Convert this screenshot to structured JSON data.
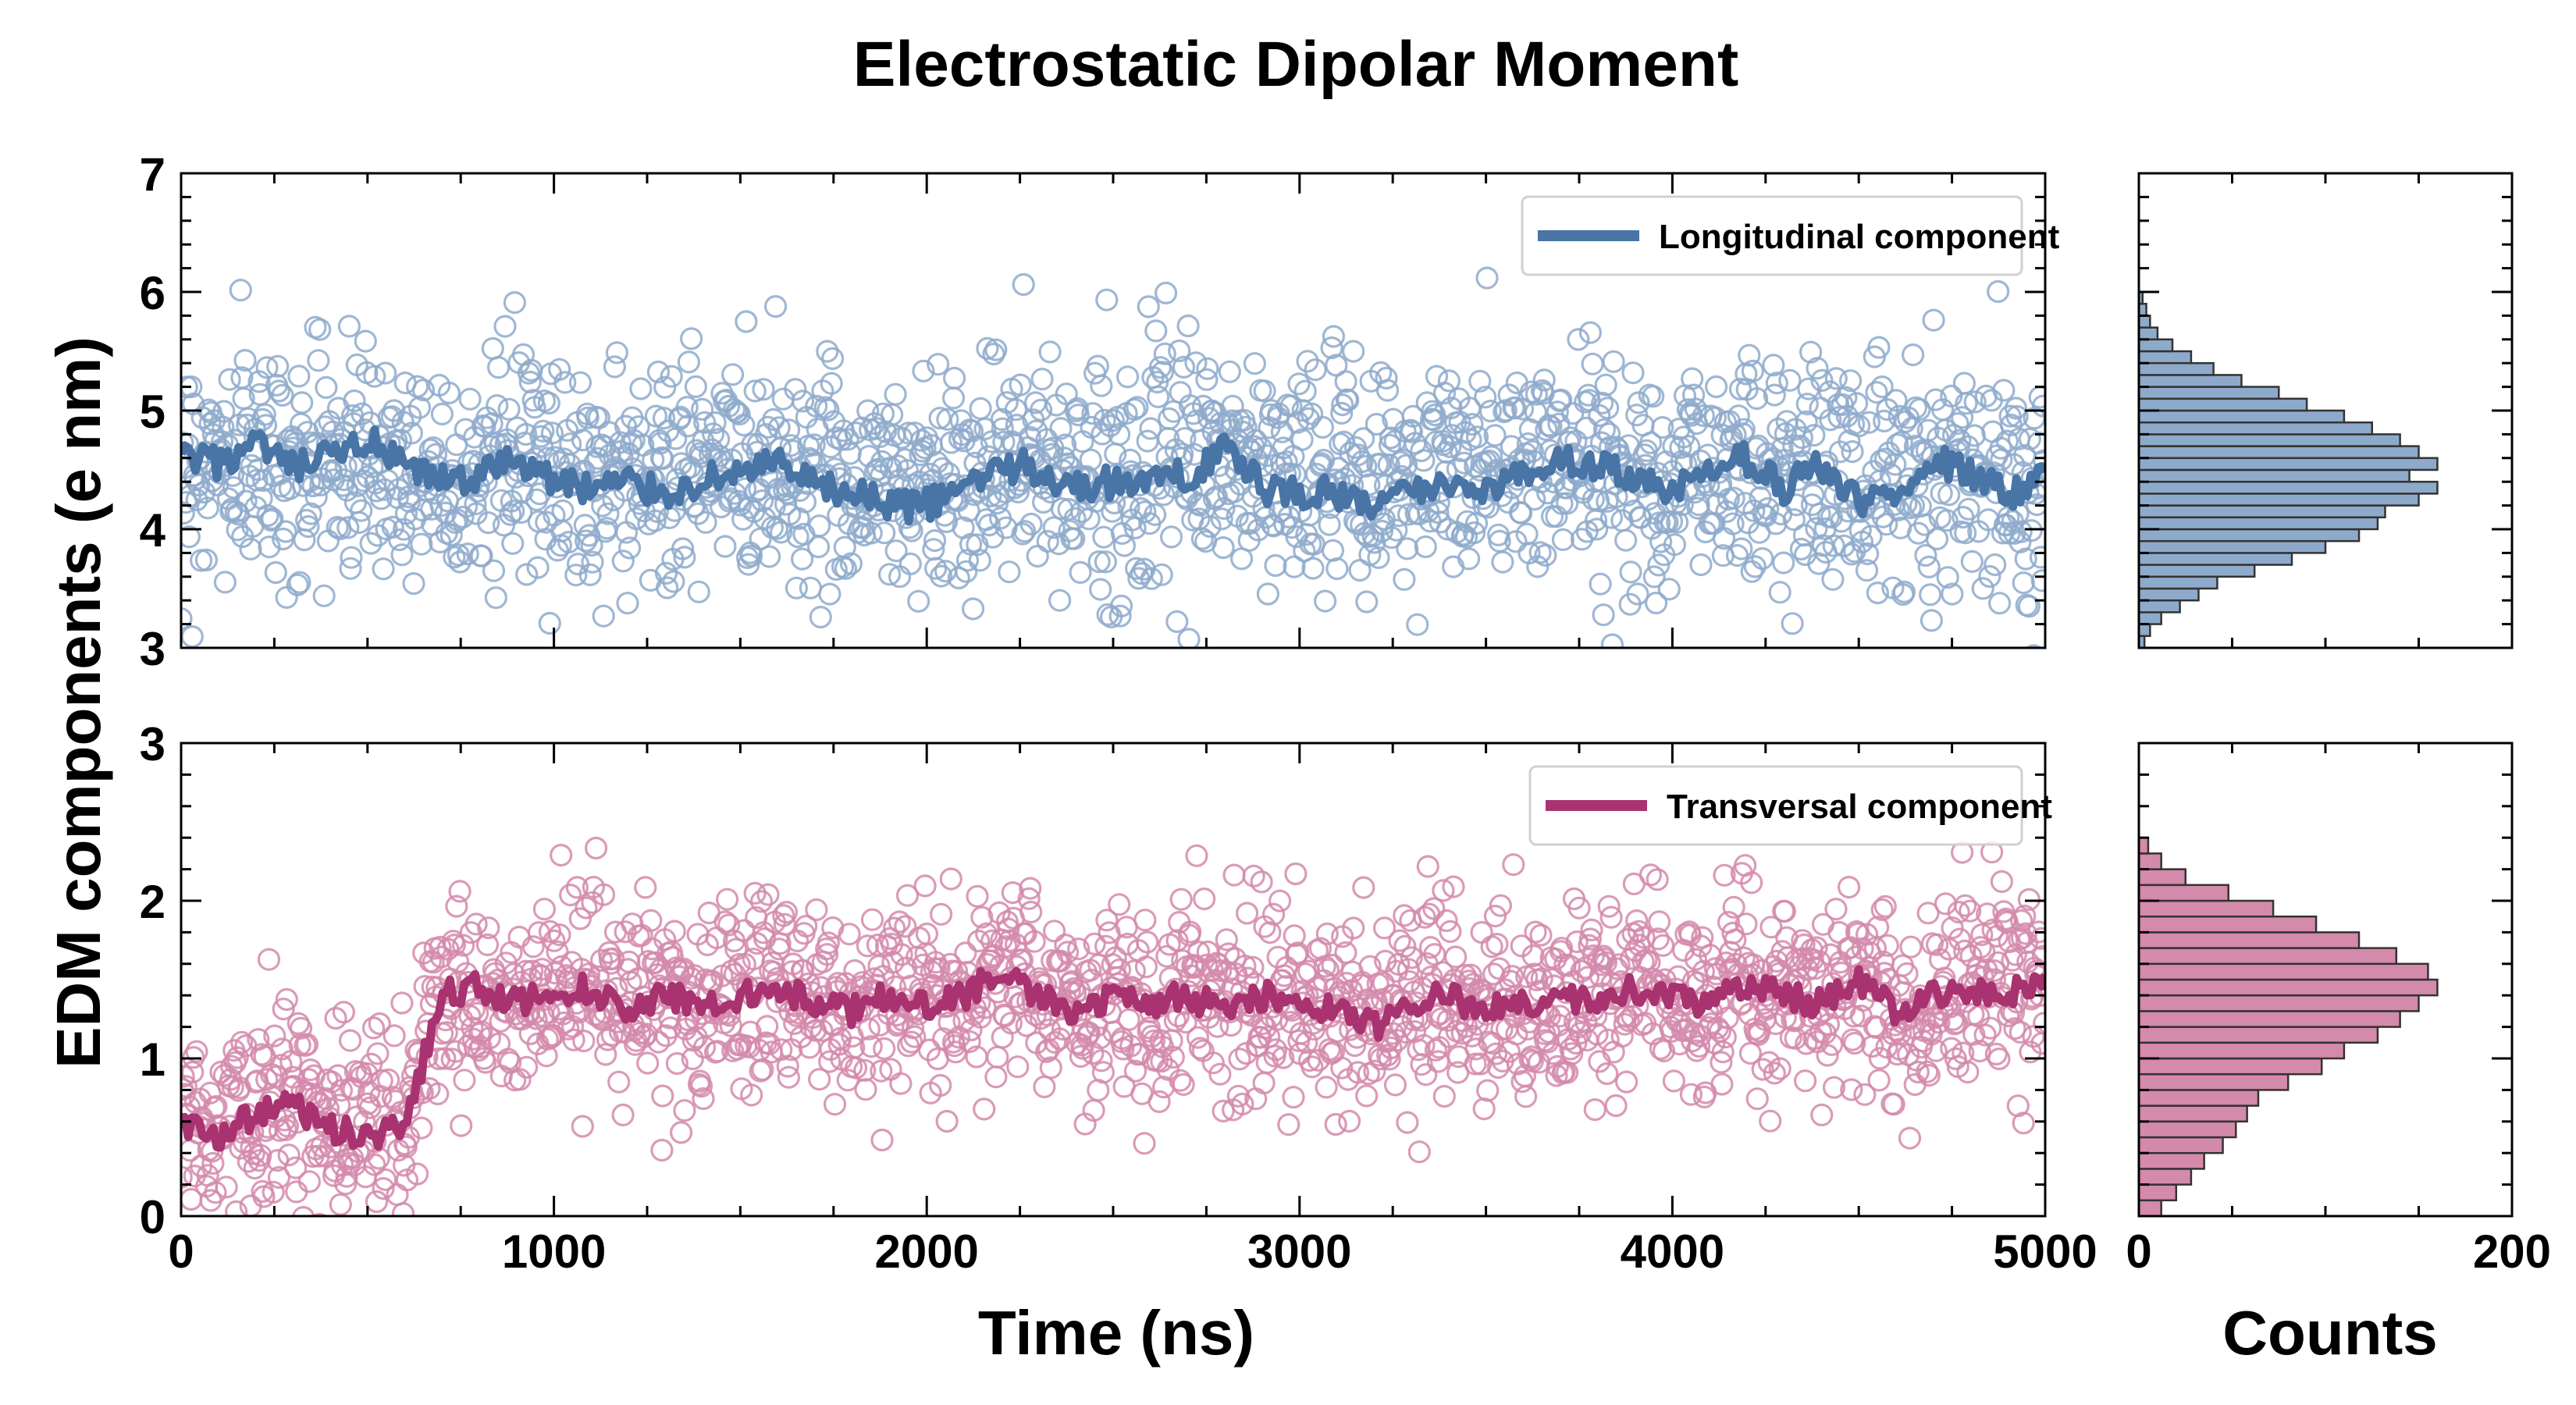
{
  "figure": {
    "title": "Electrostatic Dipolar Moment",
    "xlabel": "Time (ns)",
    "ylabel": "EDM components (e nm)",
    "hist_xlabel": "Counts"
  },
  "colors": {
    "longitudinal": "#4874a6",
    "longitudinal_fill": "#8eaacb",
    "transversal": "#a83370",
    "transversal_fill": "#d48aab"
  },
  "chart_data": [
    {
      "id": "top",
      "type": "scatter",
      "x_range": [
        0,
        5000
      ],
      "ylim": [
        3,
        7
      ],
      "yticks": [
        3,
        4,
        5,
        6,
        7
      ],
      "xticks": [
        0,
        1000,
        2000,
        3000,
        4000,
        5000
      ],
      "legend": "Longitudinal component",
      "legend_loc": "top-right",
      "scatter_mean": 4.55,
      "scatter_spread": 0.48,
      "line": {
        "x": [
          0,
          100,
          200,
          300,
          400,
          500,
          600,
          700,
          800,
          900,
          1000,
          1100,
          1200,
          1300,
          1400,
          1500,
          1600,
          1700,
          1800,
          1900,
          2000,
          2100,
          2200,
          2300,
          2400,
          2500,
          2600,
          2700,
          2800,
          2900,
          3000,
          3100,
          3200,
          3300,
          3400,
          3500,
          3600,
          3700,
          3800,
          3900,
          4000,
          4100,
          4200,
          4300,
          4400,
          4500,
          4600,
          4700,
          4800,
          4900,
          5000
        ],
        "y": [
          4.6,
          4.55,
          4.7,
          4.5,
          4.6,
          4.75,
          4.5,
          4.4,
          4.45,
          4.6,
          4.4,
          4.35,
          4.4,
          4.3,
          4.4,
          4.5,
          4.55,
          4.35,
          4.3,
          4.2,
          4.2,
          4.35,
          4.55,
          4.5,
          4.35,
          4.4,
          4.4,
          4.45,
          4.7,
          4.35,
          4.3,
          4.3,
          4.2,
          4.3,
          4.4,
          4.35,
          4.45,
          4.6,
          4.55,
          4.4,
          4.3,
          4.45,
          4.6,
          4.35,
          4.55,
          4.2,
          4.35,
          4.6,
          4.45,
          4.3,
          4.4
        ]
      },
      "hist": {
        "xlim": [
          0,
          200
        ],
        "xticks": [
          0,
          200
        ],
        "bins": [
          3.0,
          3.1,
          3.2,
          3.3,
          3.4,
          3.5,
          3.6,
          3.7,
          3.8,
          3.9,
          4.0,
          4.1,
          4.2,
          4.3,
          4.4,
          4.5,
          4.6,
          4.7,
          4.8,
          4.9,
          5.0,
          5.1,
          5.2,
          5.3,
          5.4,
          5.5,
          5.6,
          5.7,
          5.8,
          5.9
        ],
        "counts": [
          3,
          6,
          12,
          22,
          32,
          42,
          62,
          82,
          100,
          118,
          128,
          132,
          150,
          160,
          145,
          160,
          150,
          140,
          125,
          110,
          90,
          75,
          55,
          40,
          28,
          18,
          10,
          6,
          4,
          2
        ]
      }
    },
    {
      "id": "bottom",
      "type": "scatter",
      "x_range": [
        0,
        5000
      ],
      "ylim": [
        0,
        3
      ],
      "yticks": [
        0,
        1,
        2,
        3
      ],
      "xticks": [
        0,
        1000,
        2000,
        3000,
        4000,
        5000
      ],
      "xtick_labels": [
        "0",
        "1000",
        "2000",
        "3000",
        "4000",
        "5000"
      ],
      "legend": "Transversal component",
      "legend_loc": "top-right",
      "scatter_spread": 0.32,
      "line": {
        "x": [
          0,
          100,
          200,
          300,
          400,
          500,
          600,
          650,
          700,
          800,
          900,
          1000,
          1100,
          1200,
          1300,
          1400,
          1500,
          1600,
          1700,
          1800,
          1900,
          2000,
          2100,
          2200,
          2300,
          2400,
          2500,
          2600,
          2700,
          2800,
          2900,
          3000,
          3100,
          3200,
          3300,
          3400,
          3500,
          3600,
          3700,
          3800,
          3900,
          4000,
          4100,
          4200,
          4300,
          4400,
          4500,
          4600,
          4700,
          4800,
          4900,
          5000
        ],
        "y": [
          0.6,
          0.5,
          0.65,
          0.7,
          0.55,
          0.5,
          0.55,
          1.0,
          1.4,
          1.45,
          1.35,
          1.4,
          1.45,
          1.3,
          1.4,
          1.35,
          1.4,
          1.45,
          1.35,
          1.3,
          1.4,
          1.35,
          1.4,
          1.55,
          1.4,
          1.25,
          1.4,
          1.35,
          1.4,
          1.3,
          1.4,
          1.35,
          1.3,
          1.2,
          1.35,
          1.4,
          1.3,
          1.35,
          1.4,
          1.35,
          1.45,
          1.4,
          1.35,
          1.45,
          1.4,
          1.35,
          1.5,
          1.3,
          1.4,
          1.45,
          1.4,
          1.5
        ]
      },
      "hist": {
        "xlim": [
          0,
          200
        ],
        "xticks": [
          0,
          200
        ],
        "xtick_labels": [
          "0",
          "200"
        ],
        "bins": [
          0.0,
          0.1,
          0.2,
          0.3,
          0.4,
          0.5,
          0.6,
          0.7,
          0.8,
          0.9,
          1.0,
          1.1,
          1.2,
          1.3,
          1.4,
          1.5,
          1.6,
          1.7,
          1.8,
          1.9,
          2.0,
          2.1,
          2.2,
          2.3
        ],
        "counts": [
          12,
          20,
          28,
          35,
          45,
          52,
          58,
          64,
          80,
          98,
          110,
          128,
          140,
          150,
          160,
          155,
          138,
          118,
          95,
          72,
          48,
          25,
          12,
          5
        ]
      }
    }
  ]
}
